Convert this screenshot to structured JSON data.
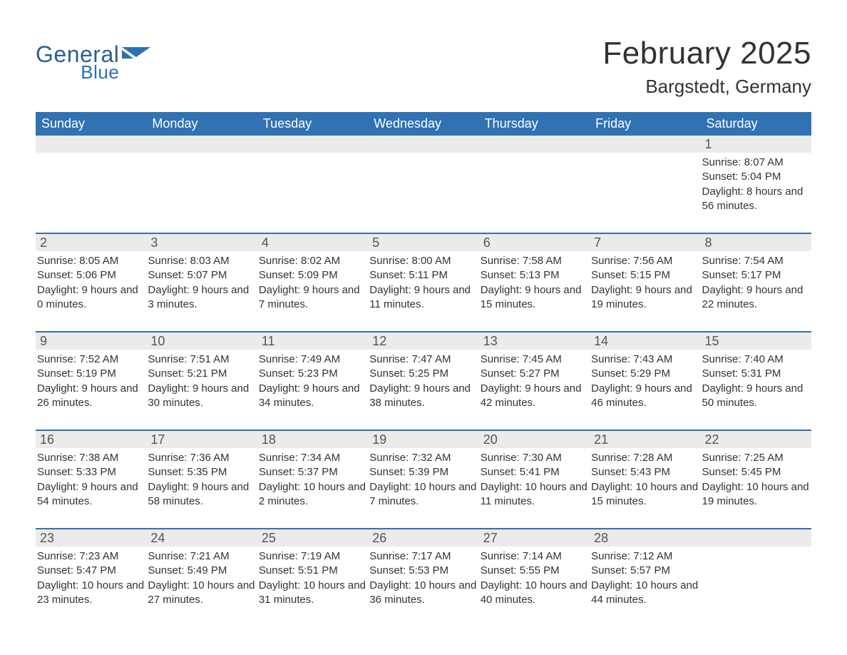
{
  "logo": {
    "general": "General",
    "blue": "Blue",
    "icon_color": "#2d6fb3"
  },
  "header": {
    "title": "February 2025",
    "location": "Bargstedt, Germany"
  },
  "styling": {
    "header_bg": "#3072b3",
    "header_text": "#ffffff",
    "week_border": "#3072b3",
    "daybar_bg": "#ebebeb",
    "body_text": "#333333",
    "page_bg": "#ffffff"
  },
  "day_names": [
    "Sunday",
    "Monday",
    "Tuesday",
    "Wednesday",
    "Thursday",
    "Friday",
    "Saturday"
  ],
  "weeks": [
    [
      {
        "day": "",
        "sunrise": "",
        "sunset": "",
        "daylight": ""
      },
      {
        "day": "",
        "sunrise": "",
        "sunset": "",
        "daylight": ""
      },
      {
        "day": "",
        "sunrise": "",
        "sunset": "",
        "daylight": ""
      },
      {
        "day": "",
        "sunrise": "",
        "sunset": "",
        "daylight": ""
      },
      {
        "day": "",
        "sunrise": "",
        "sunset": "",
        "daylight": ""
      },
      {
        "day": "",
        "sunrise": "",
        "sunset": "",
        "daylight": ""
      },
      {
        "day": "1",
        "sunrise": "Sunrise: 8:07 AM",
        "sunset": "Sunset: 5:04 PM",
        "daylight": "Daylight: 8 hours and 56 minutes."
      }
    ],
    [
      {
        "day": "2",
        "sunrise": "Sunrise: 8:05 AM",
        "sunset": "Sunset: 5:06 PM",
        "daylight": "Daylight: 9 hours and 0 minutes."
      },
      {
        "day": "3",
        "sunrise": "Sunrise: 8:03 AM",
        "sunset": "Sunset: 5:07 PM",
        "daylight": "Daylight: 9 hours and 3 minutes."
      },
      {
        "day": "4",
        "sunrise": "Sunrise: 8:02 AM",
        "sunset": "Sunset: 5:09 PM",
        "daylight": "Daylight: 9 hours and 7 minutes."
      },
      {
        "day": "5",
        "sunrise": "Sunrise: 8:00 AM",
        "sunset": "Sunset: 5:11 PM",
        "daylight": "Daylight: 9 hours and 11 minutes."
      },
      {
        "day": "6",
        "sunrise": "Sunrise: 7:58 AM",
        "sunset": "Sunset: 5:13 PM",
        "daylight": "Daylight: 9 hours and 15 minutes."
      },
      {
        "day": "7",
        "sunrise": "Sunrise: 7:56 AM",
        "sunset": "Sunset: 5:15 PM",
        "daylight": "Daylight: 9 hours and 19 minutes."
      },
      {
        "day": "8",
        "sunrise": "Sunrise: 7:54 AM",
        "sunset": "Sunset: 5:17 PM",
        "daylight": "Daylight: 9 hours and 22 minutes."
      }
    ],
    [
      {
        "day": "9",
        "sunrise": "Sunrise: 7:52 AM",
        "sunset": "Sunset: 5:19 PM",
        "daylight": "Daylight: 9 hours and 26 minutes."
      },
      {
        "day": "10",
        "sunrise": "Sunrise: 7:51 AM",
        "sunset": "Sunset: 5:21 PM",
        "daylight": "Daylight: 9 hours and 30 minutes."
      },
      {
        "day": "11",
        "sunrise": "Sunrise: 7:49 AM",
        "sunset": "Sunset: 5:23 PM",
        "daylight": "Daylight: 9 hours and 34 minutes."
      },
      {
        "day": "12",
        "sunrise": "Sunrise: 7:47 AM",
        "sunset": "Sunset: 5:25 PM",
        "daylight": "Daylight: 9 hours and 38 minutes."
      },
      {
        "day": "13",
        "sunrise": "Sunrise: 7:45 AM",
        "sunset": "Sunset: 5:27 PM",
        "daylight": "Daylight: 9 hours and 42 minutes."
      },
      {
        "day": "14",
        "sunrise": "Sunrise: 7:43 AM",
        "sunset": "Sunset: 5:29 PM",
        "daylight": "Daylight: 9 hours and 46 minutes."
      },
      {
        "day": "15",
        "sunrise": "Sunrise: 7:40 AM",
        "sunset": "Sunset: 5:31 PM",
        "daylight": "Daylight: 9 hours and 50 minutes."
      }
    ],
    [
      {
        "day": "16",
        "sunrise": "Sunrise: 7:38 AM",
        "sunset": "Sunset: 5:33 PM",
        "daylight": "Daylight: 9 hours and 54 minutes."
      },
      {
        "day": "17",
        "sunrise": "Sunrise: 7:36 AM",
        "sunset": "Sunset: 5:35 PM",
        "daylight": "Daylight: 9 hours and 58 minutes."
      },
      {
        "day": "18",
        "sunrise": "Sunrise: 7:34 AM",
        "sunset": "Sunset: 5:37 PM",
        "daylight": "Daylight: 10 hours and 2 minutes."
      },
      {
        "day": "19",
        "sunrise": "Sunrise: 7:32 AM",
        "sunset": "Sunset: 5:39 PM",
        "daylight": "Daylight: 10 hours and 7 minutes."
      },
      {
        "day": "20",
        "sunrise": "Sunrise: 7:30 AM",
        "sunset": "Sunset: 5:41 PM",
        "daylight": "Daylight: 10 hours and 11 minutes."
      },
      {
        "day": "21",
        "sunrise": "Sunrise: 7:28 AM",
        "sunset": "Sunset: 5:43 PM",
        "daylight": "Daylight: 10 hours and 15 minutes."
      },
      {
        "day": "22",
        "sunrise": "Sunrise: 7:25 AM",
        "sunset": "Sunset: 5:45 PM",
        "daylight": "Daylight: 10 hours and 19 minutes."
      }
    ],
    [
      {
        "day": "23",
        "sunrise": "Sunrise: 7:23 AM",
        "sunset": "Sunset: 5:47 PM",
        "daylight": "Daylight: 10 hours and 23 minutes."
      },
      {
        "day": "24",
        "sunrise": "Sunrise: 7:21 AM",
        "sunset": "Sunset: 5:49 PM",
        "daylight": "Daylight: 10 hours and 27 minutes."
      },
      {
        "day": "25",
        "sunrise": "Sunrise: 7:19 AM",
        "sunset": "Sunset: 5:51 PM",
        "daylight": "Daylight: 10 hours and 31 minutes."
      },
      {
        "day": "26",
        "sunrise": "Sunrise: 7:17 AM",
        "sunset": "Sunset: 5:53 PM",
        "daylight": "Daylight: 10 hours and 36 minutes."
      },
      {
        "day": "27",
        "sunrise": "Sunrise: 7:14 AM",
        "sunset": "Sunset: 5:55 PM",
        "daylight": "Daylight: 10 hours and 40 minutes."
      },
      {
        "day": "28",
        "sunrise": "Sunrise: 7:12 AM",
        "sunset": "Sunset: 5:57 PM",
        "daylight": "Daylight: 10 hours and 44 minutes."
      },
      {
        "day": "",
        "sunrise": "",
        "sunset": "",
        "daylight": ""
      }
    ]
  ]
}
